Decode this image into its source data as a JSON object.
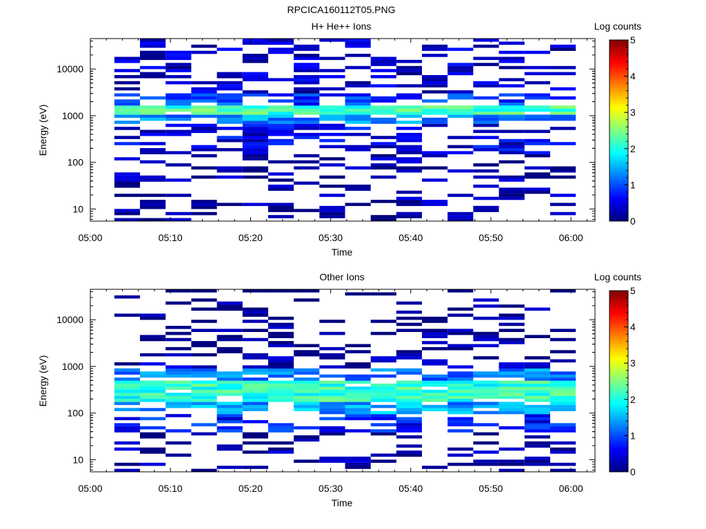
{
  "page_title": "RPCICA160112T05.PNG",
  "colormap_stops": [
    "#00007f",
    "#0000ff",
    "#0080ff",
    "#00ffff",
    "#80ff80",
    "#ffff00",
    "#ff8000",
    "#ff0000",
    "#7f0000"
  ],
  "chart_data": [
    {
      "type": "heatmap",
      "title": "H+ He++ Ions",
      "xlabel": "Time",
      "ylabel": "Energy (eV)",
      "x_ticks": [
        "05:00",
        "05:10",
        "05:20",
        "05:30",
        "05:40",
        "05:50",
        "06:00"
      ],
      "x_range_minutes": [
        0,
        63
      ],
      "y_scale": "log",
      "y_range": [
        5.5,
        45000
      ],
      "y_ticks": [
        10,
        100,
        1000,
        10000
      ],
      "y_tick_labels": [
        "10",
        "100",
        "1000",
        "10000"
      ],
      "colorbar": {
        "label": "Log counts",
        "range": [
          0,
          5
        ],
        "ticks": [
          "0",
          "1",
          "2",
          "3",
          "4",
          "5"
        ]
      },
      "n_time_bins": 18,
      "time_bin_start_minutes": 3.0,
      "time_bin_width_minutes": 3.2,
      "peak_energy_eV": 1300,
      "peak_log_counts": 2.4,
      "bands": [
        {
          "e_min": 1100,
          "e_max": 1700,
          "level": 2.2
        },
        {
          "e_min": 700,
          "e_max": 1100,
          "level": 1.3
        },
        {
          "e_min": 1700,
          "e_max": 3000,
          "level": 0.9
        },
        {
          "e_min": 3000,
          "e_max": 45000,
          "level": 0.35
        },
        {
          "e_min": 150,
          "e_max": 700,
          "level": 0.5
        },
        {
          "e_min": 6,
          "e_max": 150,
          "level": 0.15
        }
      ]
    },
    {
      "type": "heatmap",
      "title": "Other Ions",
      "xlabel": "Time",
      "ylabel": "Energy (eV)",
      "x_ticks": [
        "05:00",
        "05:10",
        "05:20",
        "05:30",
        "05:40",
        "05:50",
        "06:00"
      ],
      "x_range_minutes": [
        0,
        63
      ],
      "y_scale": "log",
      "y_range": [
        5.5,
        45000
      ],
      "y_ticks": [
        10,
        100,
        1000,
        10000
      ],
      "y_tick_labels": [
        "10",
        "100",
        "1000",
        "10000"
      ],
      "colorbar": {
        "label": "Log counts",
        "range": [
          0,
          5
        ],
        "ticks": [
          "0",
          "1",
          "2",
          "3",
          "4",
          "5"
        ]
      },
      "n_time_bins": 18,
      "time_bin_start_minutes": 3.0,
      "time_bin_width_minutes": 3.2,
      "peak_energy_eV": 300,
      "peak_log_counts": 2.4,
      "bands": [
        {
          "e_min": 180,
          "e_max": 480,
          "level": 2.1
        },
        {
          "e_min": 100,
          "e_max": 180,
          "level": 1.4
        },
        {
          "e_min": 480,
          "e_max": 900,
          "level": 1.2
        },
        {
          "e_min": 40,
          "e_max": 100,
          "level": 0.7
        },
        {
          "e_min": 900,
          "e_max": 2000,
          "level": 0.2
        },
        {
          "e_min": 6,
          "e_max": 40,
          "level": 0.1
        },
        {
          "e_min": 2000,
          "e_max": 20000,
          "level": 0.05
        }
      ]
    }
  ]
}
